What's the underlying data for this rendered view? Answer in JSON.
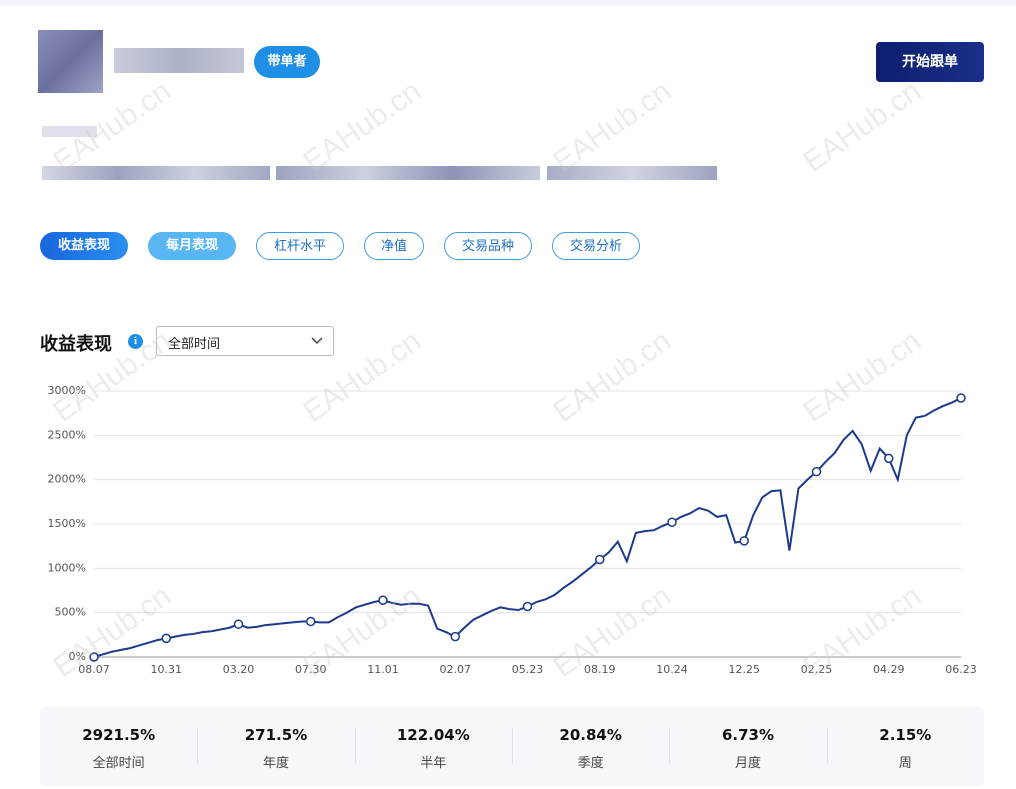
{
  "header": {
    "badge": "带单者",
    "follow_button": "开始跟单"
  },
  "tabs": [
    "收益表现",
    "每月表现",
    "杠杆水平",
    "净值",
    "交易品种",
    "交易分析"
  ],
  "section": {
    "title": "收益表现",
    "period_select": "全部时间"
  },
  "watermark": "EAHub.cn",
  "chart_data": {
    "type": "line",
    "categories": [
      "08.07",
      null,
      null,
      null,
      null,
      null,
      null,
      null,
      "10.31",
      null,
      null,
      null,
      null,
      null,
      null,
      null,
      "03.20",
      null,
      null,
      null,
      null,
      null,
      null,
      null,
      "07.30",
      null,
      null,
      null,
      null,
      null,
      null,
      null,
      "11.01",
      null,
      null,
      null,
      null,
      null,
      null,
      null,
      "02.07",
      null,
      null,
      null,
      null,
      null,
      null,
      null,
      "05.23",
      null,
      null,
      null,
      null,
      null,
      null,
      null,
      "08.19",
      null,
      null,
      null,
      null,
      null,
      null,
      null,
      "10.24",
      null,
      null,
      null,
      null,
      null,
      null,
      null,
      "12.25",
      null,
      null,
      null,
      null,
      null,
      null,
      null,
      "02.25",
      null,
      null,
      null,
      null,
      null,
      null,
      null,
      "04.29",
      null,
      null,
      null,
      null,
      null,
      null,
      null,
      "06.23"
    ],
    "series": [
      {
        "name": "收益",
        "color": "#1b3a8c",
        "values": [
          0,
          30,
          60,
          80,
          100,
          130,
          160,
          190,
          210,
          230,
          250,
          260,
          280,
          290,
          310,
          330,
          370,
          330,
          340,
          360,
          370,
          380,
          390,
          400,
          400,
          390,
          390,
          450,
          500,
          560,
          590,
          620,
          640,
          610,
          590,
          600,
          600,
          580,
          320,
          280,
          230,
          330,
          420,
          470,
          520,
          560,
          540,
          530,
          570,
          620,
          650,
          700,
          780,
          850,
          930,
          1010,
          1100,
          1180,
          1300,
          1080,
          1400,
          1420,
          1430,
          1480,
          1520,
          1580,
          1620,
          1680,
          1650,
          1580,
          1600,
          1290,
          1310,
          1600,
          1800,
          1870,
          1880,
          1200,
          1900,
          2000,
          2090,
          2200,
          2300,
          2450,
          2550,
          2400,
          2100,
          2350,
          2240,
          2000,
          2500,
          2700,
          2720,
          2780,
          2830,
          2870,
          2921.5
        ]
      }
    ],
    "ylim": [
      0,
      3000
    ],
    "yticks": [
      {
        "value": 0,
        "label": "0%"
      },
      {
        "value": 500,
        "label": "500%"
      },
      {
        "value": 1000,
        "label": "1000%"
      },
      {
        "value": 1500,
        "label": "1500%"
      },
      {
        "value": 2000,
        "label": "2000%"
      },
      {
        "value": 2500,
        "label": "2500%"
      },
      {
        "value": 3000,
        "label": "3000%"
      }
    ],
    "grid": true
  },
  "stats": [
    {
      "value": "2921.5%",
      "label": "全部时间"
    },
    {
      "value": "271.5%",
      "label": "年度"
    },
    {
      "value": "122.04%",
      "label": "半年"
    },
    {
      "value": "20.84%",
      "label": "季度"
    },
    {
      "value": "6.73%",
      "label": "月度"
    },
    {
      "value": "2.15%",
      "label": "周"
    }
  ]
}
